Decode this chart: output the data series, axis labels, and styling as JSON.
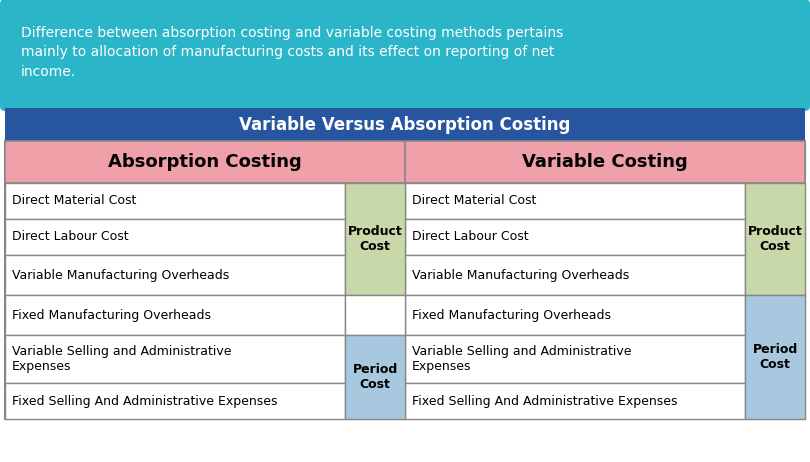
{
  "intro_text": "Difference between absorption costing and variable costing methods pertains\nmainly to allocation of manufacturing costs and its effect on reporting of net\nincome.",
  "intro_bg": "#2BB5C8",
  "intro_text_color": "#FFFFFF",
  "title": "Variable Versus Absorption Costing",
  "title_bg": "#2855A0",
  "title_text_color": "#FFFFFF",
  "header_left": "Absorption Costing",
  "header_right": "Variable Costing",
  "header_bg": "#EFA0A8",
  "header_text_color": "#000000",
  "table_border_color": "#888888",
  "row_bg": "#FFFFFF",
  "absorption_rows": [
    "Direct Material Cost",
    "Direct Labour Cost",
    "Variable Manufacturing Overheads",
    "Fixed Manufacturing Overheads",
    "Variable Selling and Administrative\nExpenses",
    "Fixed Selling And Administrative Expenses"
  ],
  "variable_rows": [
    "Direct Material Cost",
    "Direct Labour Cost",
    "Variable Manufacturing Overheads",
    "Fixed Manufacturing Overheads",
    "Variable Selling and Administrative\nExpenses",
    "Fixed Selling And Administrative Expenses"
  ],
  "abs_product_cost_rows": [
    0,
    1,
    2
  ],
  "abs_period_cost_rows": [
    4,
    5
  ],
  "var_product_cost_rows": [
    0,
    1,
    2
  ],
  "var_period_cost_rows": [
    3,
    4,
    5
  ],
  "product_cost_color": "#C8D8A8",
  "period_cost_color": "#A8C8E0",
  "label_product_cost": "Product\nCost",
  "label_period_cost": "Period\nCost",
  "outer_bg": "#FFFFFF"
}
